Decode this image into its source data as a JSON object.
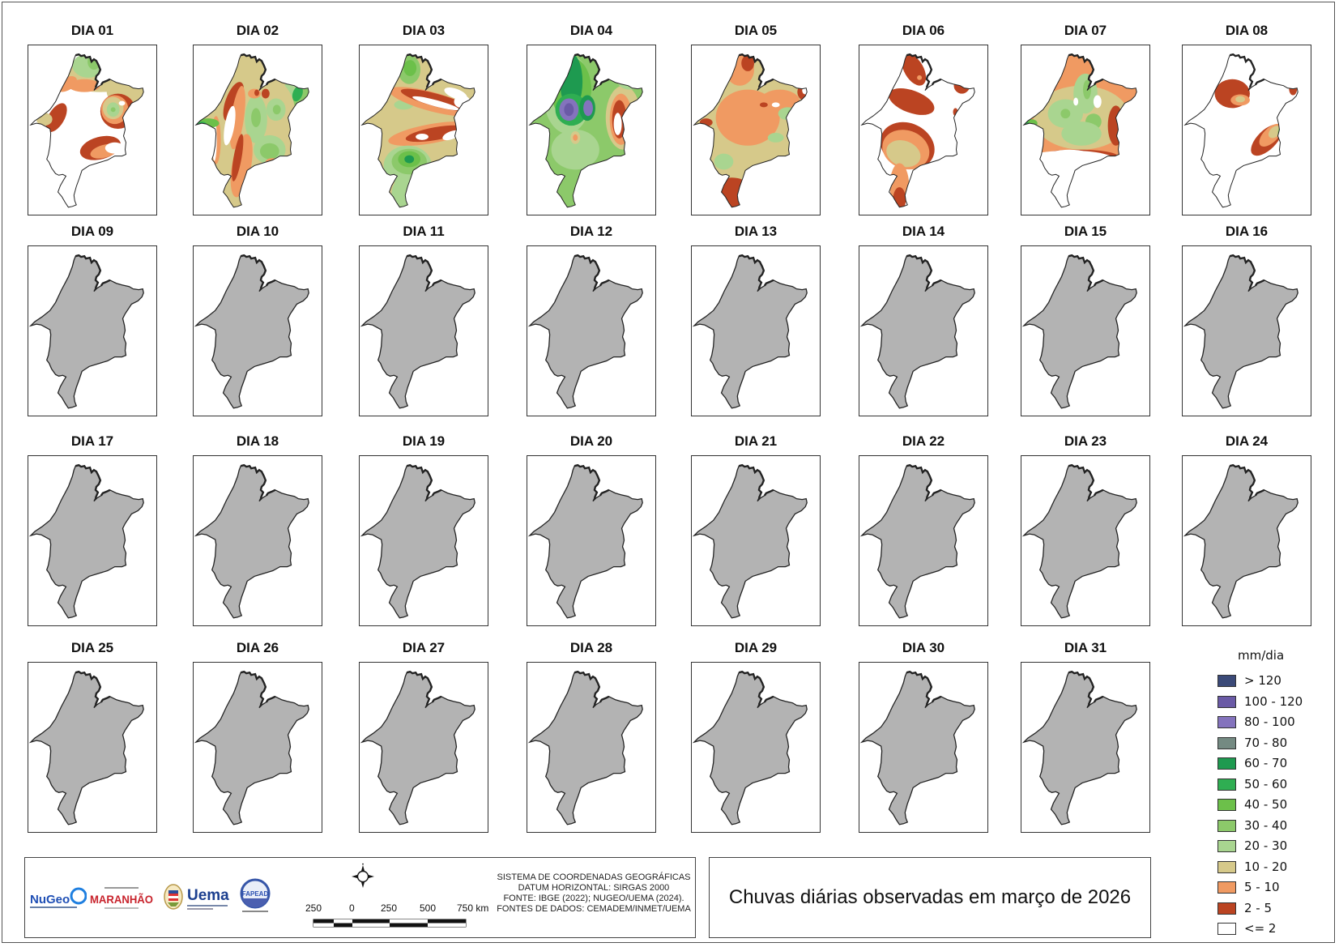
{
  "title": "Chuvas diárias observadas em março de 2026",
  "panels": [
    {
      "label": "DIA 01",
      "status": "observed",
      "pattern": "d01"
    },
    {
      "label": "DIA 02",
      "status": "observed",
      "pattern": "d02"
    },
    {
      "label": "DIA 03",
      "status": "observed",
      "pattern": "d03"
    },
    {
      "label": "DIA 04",
      "status": "observed",
      "pattern": "d04"
    },
    {
      "label": "DIA 05",
      "status": "observed",
      "pattern": "d05"
    },
    {
      "label": "DIA 06",
      "status": "observed",
      "pattern": "d06"
    },
    {
      "label": "DIA 07",
      "status": "observed",
      "pattern": "d07"
    },
    {
      "label": "DIA 08",
      "status": "observed",
      "pattern": "d08"
    },
    {
      "label": "DIA 09",
      "status": "no-data"
    },
    {
      "label": "DIA 10",
      "status": "no-data"
    },
    {
      "label": "DIA 11",
      "status": "no-data"
    },
    {
      "label": "DIA 12",
      "status": "no-data"
    },
    {
      "label": "DIA 13",
      "status": "no-data"
    },
    {
      "label": "DIA 14",
      "status": "no-data"
    },
    {
      "label": "DIA 15",
      "status": "no-data"
    },
    {
      "label": "DIA 16",
      "status": "no-data"
    },
    {
      "label": "DIA 17",
      "status": "no-data"
    },
    {
      "label": "DIA 18",
      "status": "no-data"
    },
    {
      "label": "DIA 19",
      "status": "no-data"
    },
    {
      "label": "DIA 20",
      "status": "no-data"
    },
    {
      "label": "DIA 21",
      "status": "no-data"
    },
    {
      "label": "DIA 22",
      "status": "no-data"
    },
    {
      "label": "DIA 23",
      "status": "no-data"
    },
    {
      "label": "DIA 24",
      "status": "no-data"
    },
    {
      "label": "DIA 25",
      "status": "no-data"
    },
    {
      "label": "DIA 26",
      "status": "no-data"
    },
    {
      "label": "DIA 27",
      "status": "no-data"
    },
    {
      "label": "DIA 28",
      "status": "no-data"
    },
    {
      "label": "DIA 29",
      "status": "no-data"
    },
    {
      "label": "DIA 30",
      "status": "no-data"
    },
    {
      "label": "DIA 31",
      "status": "no-data"
    }
  ],
  "legend": {
    "title": "mm/dia",
    "items": [
      {
        "label": "> 120",
        "color": "#3b4a78"
      },
      {
        "label": "100 - 120",
        "color": "#6a5aa6"
      },
      {
        "label": "80 - 100",
        "color": "#8473bd"
      },
      {
        "label": "70 - 80",
        "color": "#748a82"
      },
      {
        "label": "60 - 70",
        "color": "#1e9a50"
      },
      {
        "label": "50 - 60",
        "color": "#2fae52"
      },
      {
        "label": "40 - 50",
        "color": "#6cc04a"
      },
      {
        "label": "30 - 40",
        "color": "#8cc96a"
      },
      {
        "label": "20 - 30",
        "color": "#a9d590"
      },
      {
        "label": "10 - 20",
        "color": "#d6c98a"
      },
      {
        "label": "5 - 10",
        "color": "#f09a62"
      },
      {
        "label": "2 - 5",
        "color": "#bb4422"
      },
      {
        "label": "<= 2",
        "color": "#ffffff"
      }
    ]
  },
  "no_data_color": "#b3b3b3",
  "footer": {
    "crs_lines": [
      "SISTEMA DE COORDENADAS GEOGRÁFICAS",
      "DATUM HORIZONTAL: SIRGAS 2000",
      "FONTE: IBGE (2022); NUGEO/UEMA (2024).",
      "FONTES DE DADOS: CEMADEM/INMET/UEMA"
    ],
    "scale_labels": [
      "250",
      "0",
      "250",
      "500",
      "750 km"
    ],
    "compass_icon": "north-arrow-icon",
    "logos": [
      {
        "name": "NuGeo",
        "text": "NuGeo"
      },
      {
        "name": "Governo do Maranhão",
        "text": "MARANHÃO"
      },
      {
        "name": "Brasão Maranhão",
        "text": ""
      },
      {
        "name": "Uema",
        "text": "Uema"
      },
      {
        "name": "FAPEAD",
        "text": "FAPEAD"
      }
    ]
  }
}
